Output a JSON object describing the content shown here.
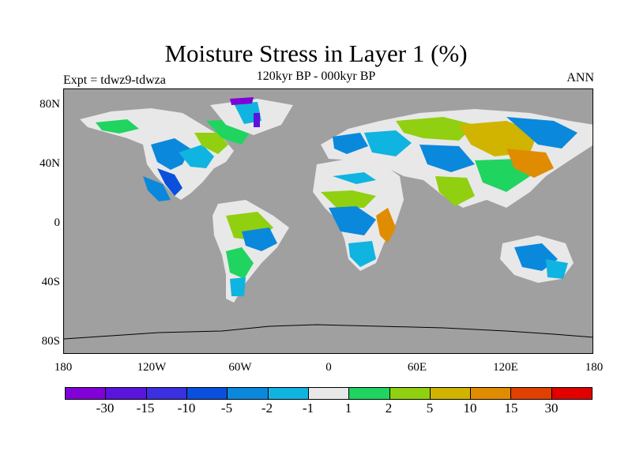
{
  "map": {
    "title": "Moisture Stress in Layer 1 (%)",
    "subtitle": "120kyr BP - 000kyr BP",
    "expt_label": "Expt = tdwz9-tdwza",
    "season_label": "ANN",
    "lat_ticks": [
      "80N",
      "40N",
      "0",
      "40S",
      "80S"
    ],
    "lon_ticks": [
      "180",
      "120W",
      "60W",
      "0",
      "60E",
      "120E",
      "180"
    ],
    "background_color": "#a0a0a0",
    "land_color": "#e8e8e8"
  },
  "colorbar": {
    "labels": [
      "-30",
      "-15",
      "-10",
      "-5",
      "-2",
      "-1",
      "1",
      "2",
      "5",
      "10",
      "15",
      "30"
    ],
    "colors": [
      "#8000d8",
      "#5a14dc",
      "#3a30e0",
      "#0a50dc",
      "#0a88dc",
      "#10b4e0",
      "#e8e8e8",
      "#20d460",
      "#90d010",
      "#d0b400",
      "#e08c00",
      "#e04000",
      "#e00000"
    ]
  }
}
